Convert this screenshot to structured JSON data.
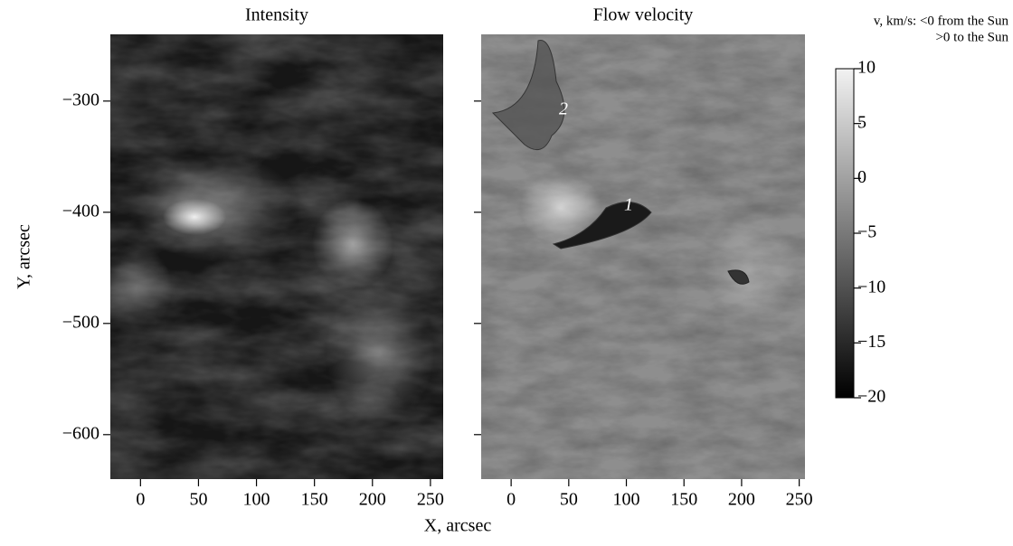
{
  "chart_data": [
    {
      "type": "image",
      "title": "Intensity",
      "ylabel": "Y, arcsec",
      "xlabel": "X, arcsec",
      "xlim": [
        -26,
        261
      ],
      "ylim": [
        -640,
        -240
      ],
      "xticks": [
        0,
        50,
        100,
        150,
        200,
        250
      ],
      "yticks": [
        {
          "value": -300,
          "label": "−300"
        },
        {
          "value": -400,
          "label": "−400"
        },
        {
          "value": -500,
          "label": "−500"
        },
        {
          "value": -600,
          "label": "−600"
        }
      ]
    },
    {
      "type": "image",
      "title": "Flow velocity",
      "xlim": [
        -26,
        255
      ],
      "ylim": [
        -640,
        -240
      ],
      "xticks": [
        0,
        50,
        100,
        150,
        200,
        250
      ],
      "yticks": [
        -300,
        -400,
        -500,
        -600
      ],
      "annotations": [
        "1",
        "2"
      ],
      "colorbar": {
        "label": [
          "v, km/s: <0  from the Sun",
          ">0 to the Sun"
        ],
        "lim": [
          -20,
          10
        ],
        "ticks": [
          10,
          5,
          0,
          {
            "value": -5,
            "label": "−5"
          },
          {
            "value": -10,
            "label": "−10"
          },
          {
            "value": -15,
            "label": "−15"
          },
          {
            "value": -20,
            "label": "−20"
          }
        ]
      }
    }
  ]
}
